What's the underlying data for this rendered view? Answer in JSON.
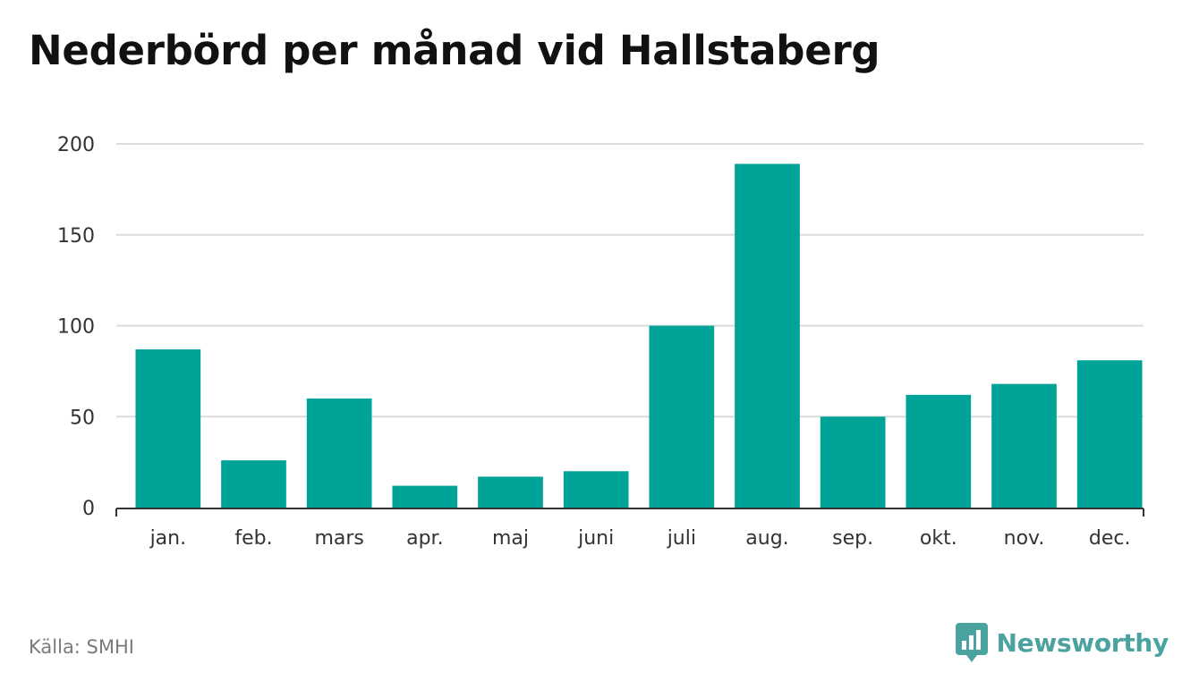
{
  "title": "Nederbörd per månad vid Hallstaberg",
  "source": "Källa: SMHI",
  "brand": {
    "name": "Newsworthy",
    "color": "#4ba3a0",
    "icon": "newsworthy-chart-bubble-icon"
  },
  "colors": {
    "bar": "#00a398",
    "grid": "#dcdcdc",
    "axis": "#333333",
    "text": "#333333"
  },
  "chart_data": {
    "type": "bar",
    "title": "Nederbörd per månad vid Hallstaberg",
    "xlabel": "",
    "ylabel": "",
    "categories": [
      "jan.",
      "feb.",
      "mars",
      "apr.",
      "maj",
      "juni",
      "juli",
      "aug.",
      "sep.",
      "okt.",
      "nov.",
      "dec."
    ],
    "values": [
      87,
      26,
      60,
      12,
      17,
      20,
      100,
      189,
      50,
      62,
      68,
      81
    ],
    "ylim": [
      0,
      200
    ],
    "yticks": [
      0,
      50,
      100,
      150,
      200
    ],
    "grid": true,
    "legend": "none"
  }
}
